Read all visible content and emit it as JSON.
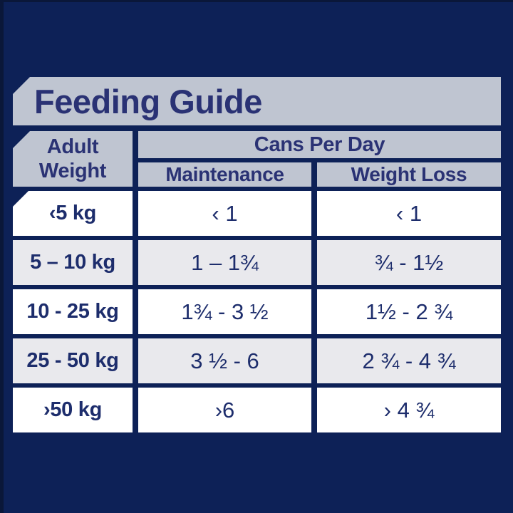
{
  "title": "Feeding Guide",
  "table": {
    "col1_header": [
      "Adult",
      "Weight"
    ],
    "group_header": "Cans Per Day",
    "sub_headers": [
      "Maintenance",
      "Weight Loss"
    ],
    "rows": [
      {
        "weight": "‹5 kg",
        "maintenance": "‹ 1",
        "weight_loss": "‹ 1"
      },
      {
        "weight": "5 – 10 kg",
        "maintenance": "1 – 1¾",
        "weight_loss": "¾ - 1½"
      },
      {
        "weight": "10 - 25 kg",
        "maintenance": "1¾ - 3 ½",
        "weight_loss": "1½ - 2 ¾"
      },
      {
        "weight": "25 - 50 kg",
        "maintenance": "3 ½ - 6",
        "weight_loss": "2 ¾ - 4 ¾"
      },
      {
        "weight": "›50 kg",
        "maintenance": "›6",
        "weight_loss": "› 4 ¾"
      }
    ]
  },
  "colors": {
    "background_navy": "#0d2157",
    "edge_navy": "#0a1739",
    "header_gray": "#bfc5d1",
    "row_white": "#ffffff",
    "row_alt_gray": "#e9e9ed",
    "text_navy": "#1d2d6c",
    "title_navy": "#2a3274"
  }
}
